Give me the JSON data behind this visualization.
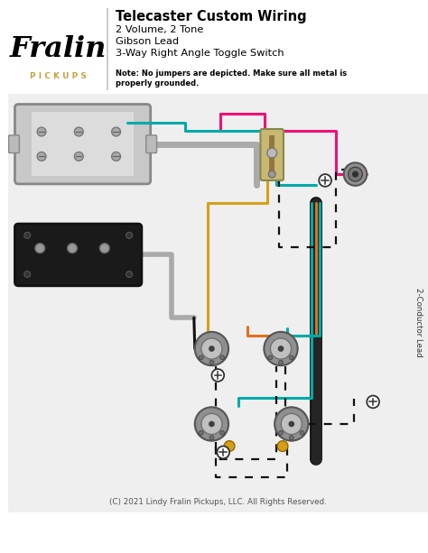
{
  "title": "Telecaster Custom Wiring",
  "subtitle_lines": [
    "2 Volume, 2 Tone",
    "Gibson Lead",
    "3-Way Right Angle Toggle Switch"
  ],
  "note": "Note: No jumpers are depicted. Make sure all metal is\nproperly grounded.",
  "brand_name": "Fralin",
  "brand_sub": "P I C K U P S",
  "copyright": "(C) 2021 Lindy Fralin Pickups, LLC. All Rights Reserved.",
  "bg_color": "#FFFFFF",
  "diagram_bg": "#EFEFEF",
  "wire_black": "#111111",
  "wire_yellow": "#D4A017",
  "wire_teal": "#00AAAA",
  "wire_pink": "#EE1177",
  "wire_orange": "#E07020",
  "wire_gray": "#AAAAAA",
  "wire_white": "#DDDDDD",
  "gold_color": "#C8A040",
  "2conductor_label": "2-Conductor Lead"
}
